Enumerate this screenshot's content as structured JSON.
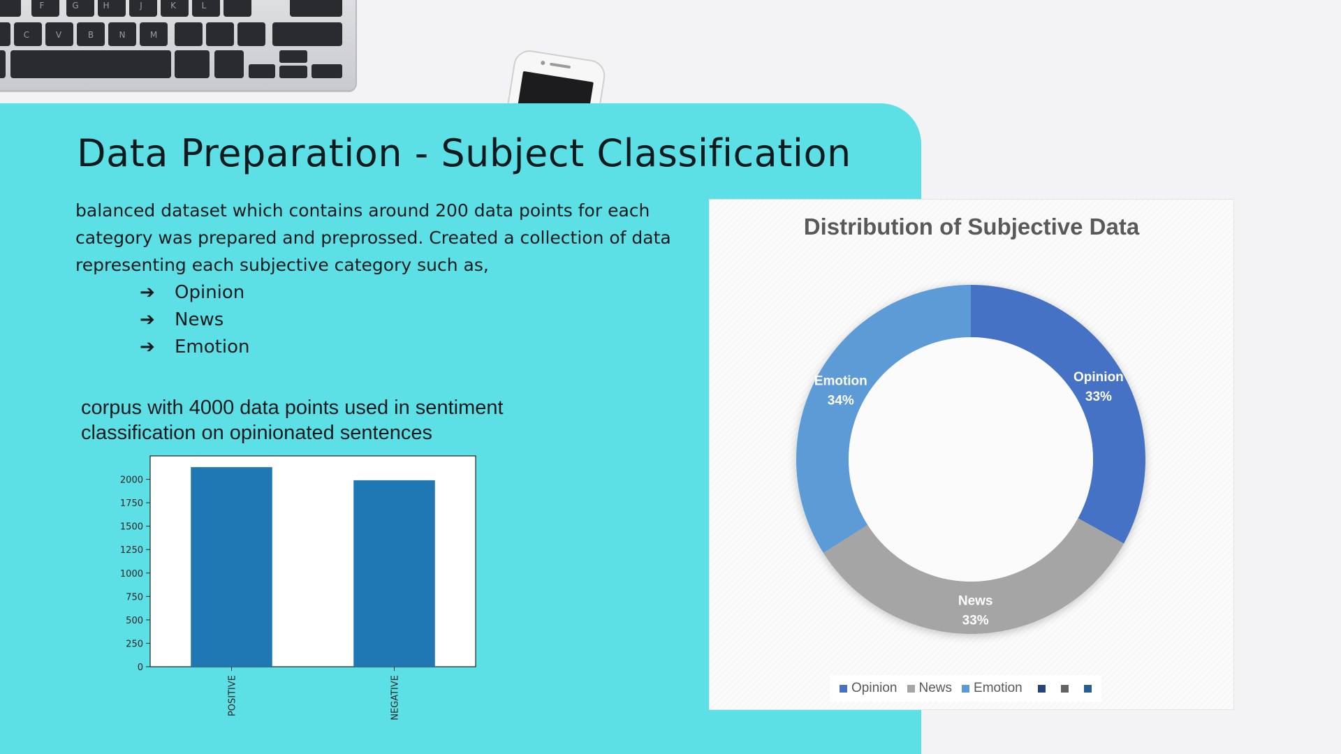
{
  "slide": {
    "title": "Data Preparation - Subject Classification",
    "intro": "balanced dataset which contains around 200 data points for each category was prepared and preprossed. Created a collection of data representing each subjective category such as,",
    "bullet_symbol": "➔",
    "categories": [
      "Opinion",
      "News",
      "Emotion"
    ],
    "corpus_note": "corpus with 4000 data points used in sentiment classification on opinionated sentences"
  },
  "chart_data": [
    {
      "type": "bar",
      "categories": [
        "POSITIVE",
        "NEGATIVE"
      ],
      "values": [
        2130,
        1990
      ],
      "ylim": [
        0,
        2250
      ],
      "yticks": [
        0,
        250,
        500,
        750,
        1000,
        1250,
        1500,
        1750,
        2000
      ],
      "bar_color": "#1f77b4",
      "title": "",
      "xlabel": "",
      "ylabel": "",
      "grid": false
    },
    {
      "type": "pie",
      "donut": true,
      "title": "Distribution of Subjective Data",
      "slices": [
        {
          "label": "Opinion",
          "value": 33,
          "display": "33%",
          "color": "#4472c4"
        },
        {
          "label": "News",
          "value": 33,
          "display": "33%",
          "color": "#a5a5a5"
        },
        {
          "label": "Emotion",
          "value": 34,
          "display": "34%",
          "color": "#5b9bd5"
        }
      ],
      "legend": {
        "placement": "bottom",
        "entries": [
          {
            "label": "Opinion",
            "color": "#4472c4"
          },
          {
            "label": "News",
            "color": "#a5a5a5"
          },
          {
            "label": "Emotion",
            "color": "#5b9bd5"
          },
          {
            "label": "",
            "color": "#264478"
          },
          {
            "label": "",
            "color": "#636363"
          },
          {
            "label": "",
            "color": "#255e91"
          }
        ]
      }
    }
  ],
  "colors": {
    "panel": "#5ce0e6",
    "background": "#f3f3f5",
    "text": "#0d1b1e"
  },
  "icons": [
    "keyboard-photo",
    "phone-photo"
  ]
}
